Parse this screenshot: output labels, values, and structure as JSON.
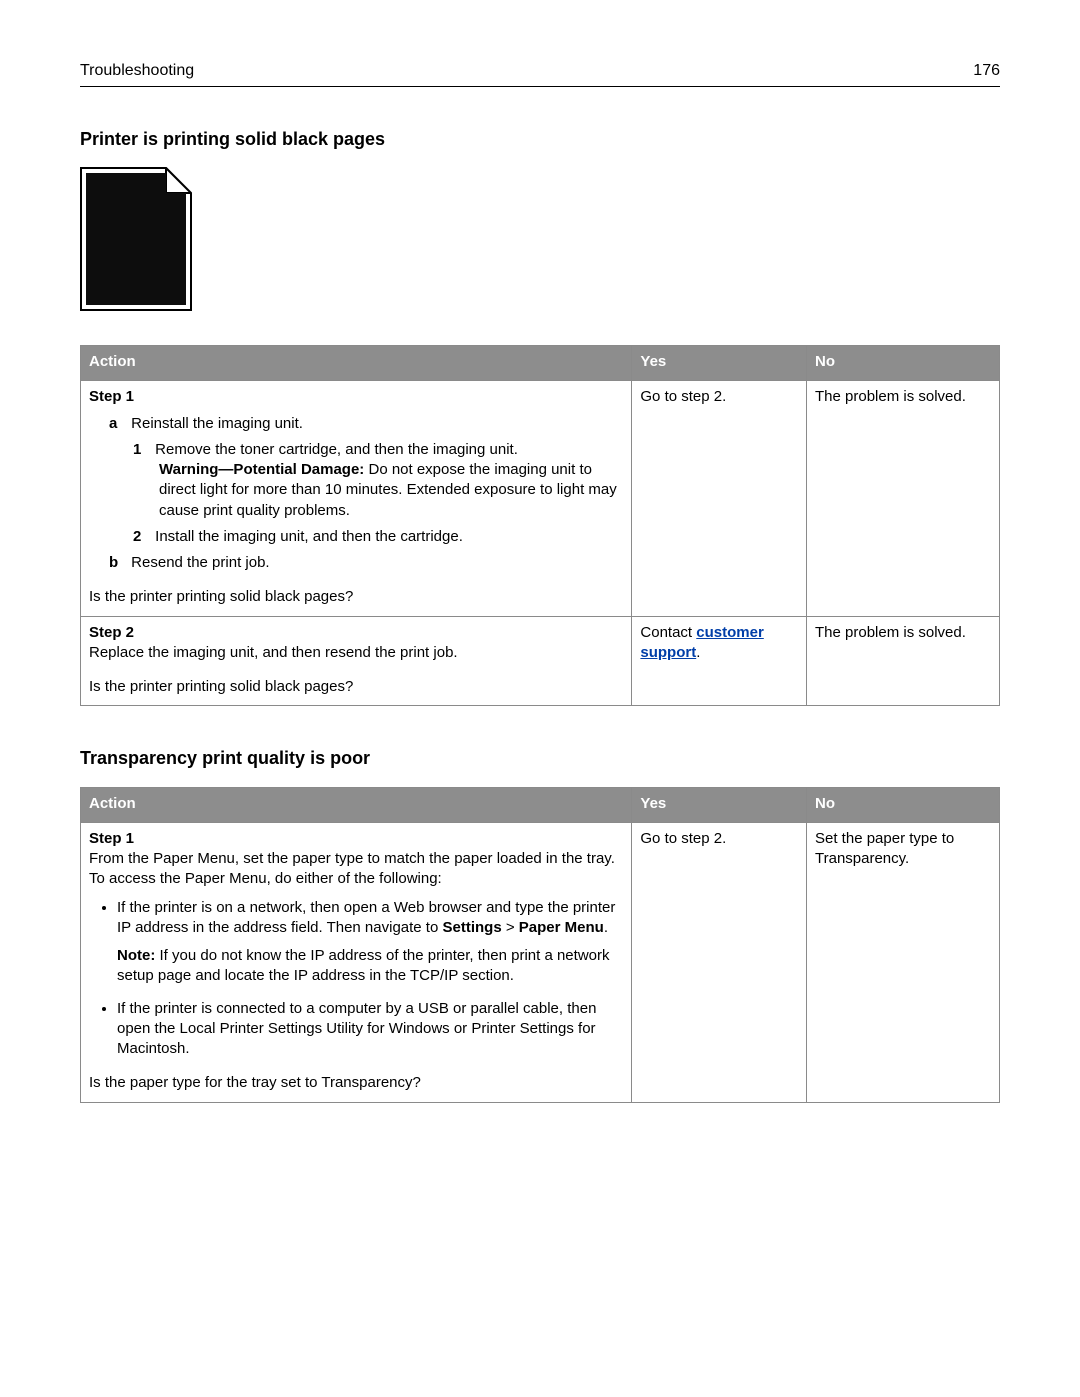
{
  "header": {
    "section": "Troubleshooting",
    "page_number": "176"
  },
  "section1": {
    "title": "Printer is printing solid black pages",
    "icon": {
      "outer_width": 112,
      "outer_height": 144,
      "dogear": 26,
      "border_color": "#000000",
      "fill_outer": "#ffffff",
      "fill_inner": "#0d0d0d",
      "inner_inset": 6
    },
    "table": {
      "header_bg": "#8d8d8d",
      "border_color": "#8a8a8a",
      "header": {
        "action": "Action",
        "yes": "Yes",
        "no": "No"
      },
      "rows": [
        {
          "step_label": "Step 1",
          "a_marker": "a",
          "a_text": "Reinstall the imaging unit.",
          "n1_marker": "1",
          "n1_text": "Remove the toner cartridge, and then the imaging unit.",
          "warn_label": "Warning—Potential Damage:",
          "warn_text": " Do not expose the imaging unit to direct light for more than 10 minutes. Extended exposure to light may cause print quality problems.",
          "n2_marker": "2",
          "n2_text": "Install the imaging unit, and then the cartridge.",
          "b_marker": "b",
          "b_text": "Resend the print job.",
          "question": "Is the printer printing solid black pages?",
          "yes": "Go to step 2.",
          "no": "The problem is solved."
        },
        {
          "step_label": "Step 2",
          "body": "Replace the imaging unit, and then resend the print job.",
          "question": "Is the printer printing solid black pages?",
          "yes_prefix": "Contact ",
          "yes_link": "customer support",
          "yes_suffix": ".",
          "no": "The problem is solved."
        }
      ]
    }
  },
  "section2": {
    "title": "Transparency print quality is poor",
    "table": {
      "header": {
        "action": "Action",
        "yes": "Yes",
        "no": "No"
      },
      "rows": [
        {
          "step_label": "Step 1",
          "intro": "From the Paper Menu, set the paper type to match the paper loaded in the tray. To access the Paper Menu, do either of the following:",
          "b1_pre": "If the printer is on a network, then open a Web browser and type the printer IP address in the address field. Then navigate to ",
          "b1_bold1": "Settings",
          "b1_mid": " > ",
          "b1_bold2": "Paper Menu",
          "b1_post": ".",
          "note_label": "Note:",
          "note_text": " If you do not know the IP address of the printer, then print a network setup page and locate the IP address in the TCP/IP section.",
          "b2": "If the printer is connected to a computer by a USB or parallel cable, then open the Local Printer Settings Utility for Windows or Printer Settings for Macintosh.",
          "question": "Is the paper type for the tray set to Transparency?",
          "yes": "Go to step 2.",
          "no": "Set the paper type to Transparency."
        }
      ]
    }
  }
}
